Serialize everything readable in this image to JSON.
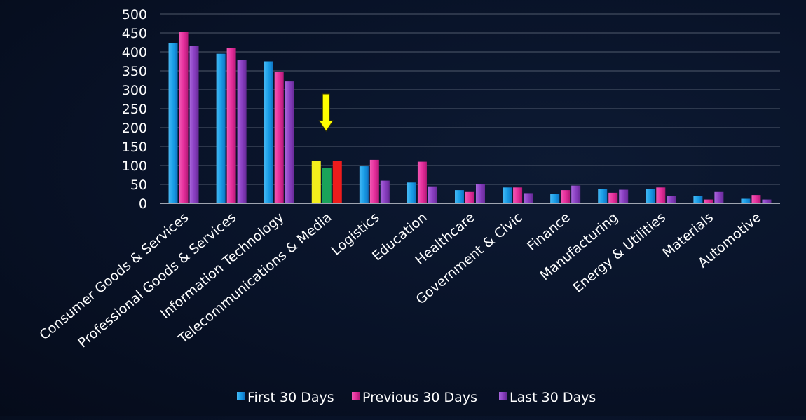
{
  "colors": {
    "series": [
      "#1a9fe8",
      "#e62f9c",
      "#8a3fc2"
    ],
    "highlight": [
      "#f3ee1c",
      "#1aa35a",
      "#ee1c1c"
    ],
    "arrow": "#ffff00",
    "gridline": "#8a93a3",
    "axis": "#d0d4dc",
    "text": "#ffffff",
    "background": "#081227"
  },
  "chart_data": {
    "type": "bar",
    "title": "",
    "xlabel": "",
    "ylabel": "",
    "ylim": [
      0,
      500
    ],
    "yticks": [
      0,
      50,
      100,
      150,
      200,
      250,
      300,
      350,
      400,
      450,
      500
    ],
    "grid": true,
    "legend_position": "bottom-center",
    "categories": [
      "Consumer Goods & Services",
      "Professional Goods & Services",
      "Information Technology",
      "Telecommunications & Media",
      "Logistics",
      "Education",
      "Healthcare",
      "Government & Civic",
      "Finance",
      "Manufacturing",
      "Energy & Utilities",
      "Materials",
      "Automotive"
    ],
    "series": [
      {
        "name": "First 30 Days",
        "values": [
          423,
          395,
          375,
          112,
          98,
          55,
          35,
          42,
          25,
          38,
          38,
          20,
          12
        ]
      },
      {
        "name": "Previous 30 Days",
        "values": [
          453,
          410,
          348,
          93,
          115,
          110,
          30,
          42,
          35,
          28,
          42,
          10,
          22
        ]
      },
      {
        "name": "Last 30 Days",
        "values": [
          415,
          378,
          322,
          112,
          60,
          45,
          50,
          27,
          47,
          36,
          20,
          30,
          10
        ]
      }
    ],
    "highlight_category": "Telecommunications & Media",
    "annotation": "arrow pointing down at Telecommunications & Media"
  }
}
